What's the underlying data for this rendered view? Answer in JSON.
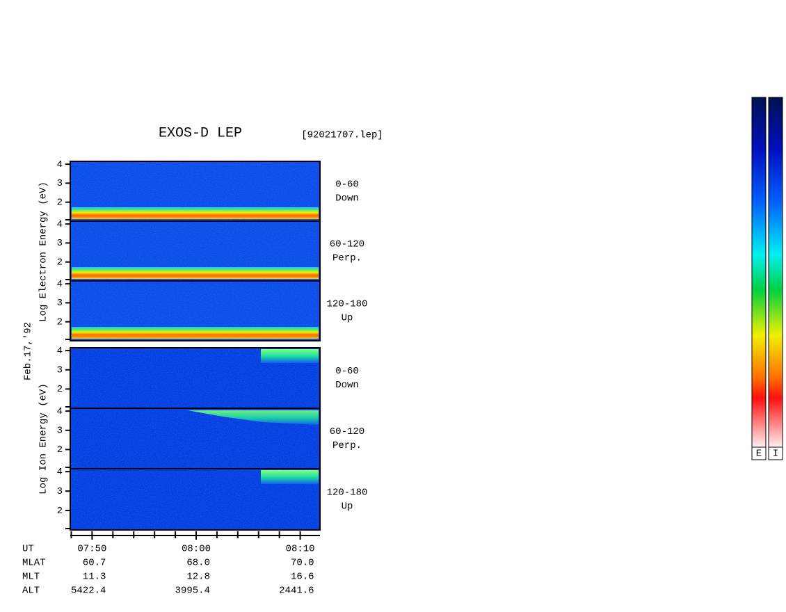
{
  "title": "EXOS-D LEP",
  "file": "[92021707.lep]",
  "date": "Feb.17,'92",
  "electron_axis_label": "Log  Electron  Energy (eV)",
  "ion_axis_label": "Log  Ion  Energy (eV)",
  "yaxis": {
    "ylim": [
      1,
      4.15
    ],
    "yticks": [
      2,
      3,
      4
    ]
  },
  "xaxis": {
    "xlim": [
      467.9,
      491.9
    ],
    "xticks": [
      {
        "value": 470,
        "label": "07:50"
      },
      {
        "value": 480,
        "label": "08:00"
      },
      {
        "value": 490,
        "label": "08:10"
      }
    ],
    "minor_ticks": [
      468,
      472,
      474,
      476,
      478,
      482,
      484,
      486,
      488
    ]
  },
  "panels": [
    {
      "species": "electron",
      "angle": "0-60",
      "direction": "Down"
    },
    {
      "species": "electron",
      "angle": "60-120",
      "direction": "Perp."
    },
    {
      "species": "electron",
      "angle": "120-180",
      "direction": "Up"
    },
    {
      "species": "ion",
      "angle": "0-60",
      "direction": "Down"
    },
    {
      "species": "ion",
      "angle": "60-120",
      "direction": "Perp."
    },
    {
      "species": "ion",
      "angle": "120-180",
      "direction": "Up"
    }
  ],
  "ephemeris": {
    "time_label": "UT",
    "rows": [
      {
        "name": "MLAT",
        "values": [
          "60.7",
          "68.0",
          "70.0"
        ]
      },
      {
        "name": "MLT",
        "values": [
          "11.3",
          "12.8",
          "16.6"
        ]
      },
      {
        "name": "ALT",
        "values": [
          "5422.4",
          "3995.4",
          "2441.6"
        ]
      }
    ]
  },
  "colorbar_labels": [
    "E",
    "I"
  ]
}
